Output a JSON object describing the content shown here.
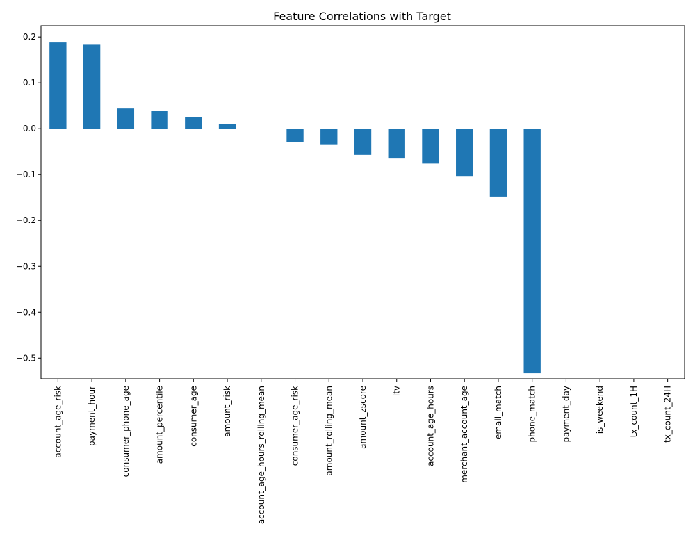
{
  "chart_data": {
    "type": "bar",
    "title": "Feature Correlations with Target",
    "xlabel": "",
    "ylabel": "",
    "categories": [
      "account_age_risk",
      "payment_hour",
      "consumer_phone_age",
      "amount_percentile",
      "consumer_age",
      "amount_risk",
      "account_age_hours_rolling_mean",
      "consumer_age_risk",
      "amount_rolling_mean",
      "amount_zscore",
      "ltv",
      "account_age_hours",
      "merchant_account_age",
      "email_match",
      "phone_match",
      "payment_day",
      "is_weekend",
      "tx_count_1H",
      "tx_count_24H"
    ],
    "values": [
      0.188,
      0.183,
      0.044,
      0.039,
      0.025,
      0.01,
      0.0,
      -0.029,
      -0.034,
      -0.057,
      -0.065,
      -0.076,
      -0.103,
      -0.148,
      -0.533,
      0.0,
      0.0,
      0.0,
      0.0
    ],
    "ylim": [
      -0.545,
      0.2245
    ],
    "yticks": [
      0.2,
      0.1,
      0.0,
      -0.1,
      -0.2,
      -0.3,
      -0.4,
      -0.5
    ],
    "ytick_labels": [
      "0.2",
      "0.1",
      "0.0",
      "−0.1",
      "−0.2",
      "−0.3",
      "−0.4",
      "−0.5"
    ],
    "grid": false,
    "legend": "none",
    "bar_color": "#1f77b4"
  }
}
